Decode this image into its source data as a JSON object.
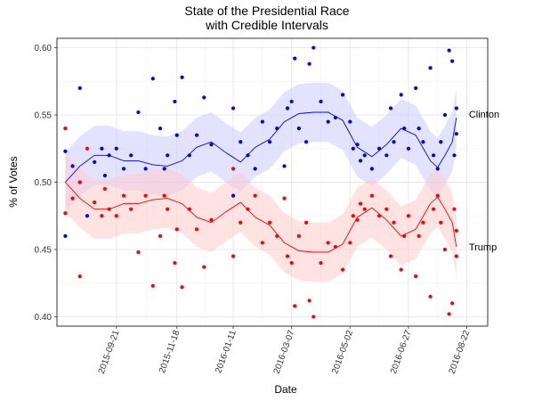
{
  "chart_data": {
    "type": "scatter",
    "title_line1": "State of the Presidential Race",
    "title_line2": "with Credible Intervals",
    "xlabel": "Date",
    "ylabel": "% of Votes",
    "ylim": [
      0.393,
      0.607
    ],
    "xlim": [
      "2015-07-26",
      "2016-09-11"
    ],
    "x_ticks": [
      "2015-09-21",
      "2015-11-18",
      "2016-01-11",
      "2016-03-07",
      "2016-05-02",
      "2016-06-27",
      "2016-08-22"
    ],
    "y_ticks": [
      0.4,
      0.45,
      0.5,
      0.55,
      0.6
    ],
    "y_tick_labels": [
      "0.40",
      "0.45",
      "0.50",
      "0.55",
      "0.60"
    ],
    "grid": true,
    "series": [
      {
        "name": "Clinton",
        "color": "#0000ff",
        "band_color": "#ccccff",
        "trend": [
          [
            "2015-08-03",
            0.5
          ],
          [
            "2015-08-17",
            0.512
          ],
          [
            "2015-08-31",
            0.52
          ],
          [
            "2015-09-14",
            0.52
          ],
          [
            "2015-09-28",
            0.516
          ],
          [
            "2015-10-12",
            0.516
          ],
          [
            "2015-10-26",
            0.513
          ],
          [
            "2015-11-09",
            0.512
          ],
          [
            "2015-11-23",
            0.516
          ],
          [
            "2015-12-07",
            0.526
          ],
          [
            "2015-12-21",
            0.53
          ],
          [
            "2016-01-04",
            0.522
          ],
          [
            "2016-01-18",
            0.515
          ],
          [
            "2016-02-01",
            0.526
          ],
          [
            "2016-02-15",
            0.532
          ],
          [
            "2016-02-29",
            0.545
          ],
          [
            "2016-03-14",
            0.551
          ],
          [
            "2016-03-28",
            0.552
          ],
          [
            "2016-04-11",
            0.552
          ],
          [
            "2016-04-25",
            0.546
          ],
          [
            "2016-05-09",
            0.526
          ],
          [
            "2016-05-23",
            0.519
          ],
          [
            "2016-06-06",
            0.528
          ],
          [
            "2016-06-20",
            0.54
          ],
          [
            "2016-07-04",
            0.535
          ],
          [
            "2016-07-18",
            0.516
          ],
          [
            "2016-07-25",
            0.511
          ],
          [
            "2016-08-01",
            0.52
          ],
          [
            "2016-08-08",
            0.53
          ],
          [
            "2016-08-12",
            0.548
          ]
        ],
        "points": [
          [
            "2015-08-03",
            0.46
          ],
          [
            "2015-08-03",
            0.523
          ],
          [
            "2015-08-10",
            0.512
          ],
          [
            "2015-08-17",
            0.57
          ],
          [
            "2015-08-17",
            0.5
          ],
          [
            "2015-08-24",
            0.475
          ],
          [
            "2015-08-31",
            0.515
          ],
          [
            "2015-09-07",
            0.525
          ],
          [
            "2015-09-10",
            0.505
          ],
          [
            "2015-09-14",
            0.52
          ],
          [
            "2015-09-21",
            0.525
          ],
          [
            "2015-09-28",
            0.51
          ],
          [
            "2015-10-05",
            0.52
          ],
          [
            "2015-10-12",
            0.552
          ],
          [
            "2015-10-19",
            0.51
          ],
          [
            "2015-10-26",
            0.577
          ],
          [
            "2015-11-02",
            0.54
          ],
          [
            "2015-11-06",
            0.51
          ],
          [
            "2015-11-09",
            0.52
          ],
          [
            "2015-11-16",
            0.56
          ],
          [
            "2015-11-18",
            0.535
          ],
          [
            "2015-11-23",
            0.578
          ],
          [
            "2015-11-30",
            0.52
          ],
          [
            "2015-12-07",
            0.535
          ],
          [
            "2015-12-14",
            0.563
          ],
          [
            "2015-12-21",
            0.528
          ],
          [
            "2016-01-11",
            0.555
          ],
          [
            "2016-01-11",
            0.49
          ],
          [
            "2016-01-18",
            0.53
          ],
          [
            "2016-01-25",
            0.52
          ],
          [
            "2016-02-01",
            0.51
          ],
          [
            "2016-02-08",
            0.545
          ],
          [
            "2016-02-15",
            0.53
          ],
          [
            "2016-02-22",
            0.54
          ],
          [
            "2016-02-29",
            0.512
          ],
          [
            "2016-03-03",
            0.555
          ],
          [
            "2016-03-07",
            0.56
          ],
          [
            "2016-03-10",
            0.592
          ],
          [
            "2016-03-14",
            0.54
          ],
          [
            "2016-03-21",
            0.53
          ],
          [
            "2016-03-24",
            0.588
          ],
          [
            "2016-03-28",
            0.6
          ],
          [
            "2016-04-04",
            0.56
          ],
          [
            "2016-04-11",
            0.545
          ],
          [
            "2016-04-18",
            0.548
          ],
          [
            "2016-04-25",
            0.565
          ],
          [
            "2016-05-02",
            0.545
          ],
          [
            "2016-05-05",
            0.525
          ],
          [
            "2016-05-09",
            0.528
          ],
          [
            "2016-05-12",
            0.516
          ],
          [
            "2016-05-16",
            0.52
          ],
          [
            "2016-05-23",
            0.51
          ],
          [
            "2016-05-30",
            0.525
          ],
          [
            "2016-06-06",
            0.52
          ],
          [
            "2016-06-10",
            0.555
          ],
          [
            "2016-06-13",
            0.53
          ],
          [
            "2016-06-20",
            0.565
          ],
          [
            "2016-06-23",
            0.54
          ],
          [
            "2016-06-27",
            0.525
          ],
          [
            "2016-07-04",
            0.57
          ],
          [
            "2016-07-07",
            0.54
          ],
          [
            "2016-07-11",
            0.53
          ],
          [
            "2016-07-18",
            0.585
          ],
          [
            "2016-07-21",
            0.52
          ],
          [
            "2016-07-25",
            0.51
          ],
          [
            "2016-07-28",
            0.53
          ],
          [
            "2016-08-01",
            0.55
          ],
          [
            "2016-08-05",
            0.598
          ],
          [
            "2016-08-08",
            0.59
          ],
          [
            "2016-08-10",
            0.52
          ],
          [
            "2016-08-12",
            0.555
          ],
          [
            "2016-08-12",
            0.536
          ]
        ]
      },
      {
        "name": "Trump",
        "color": "#ff0000",
        "band_color": "#ffcccc",
        "trend": [
          [
            "2015-08-03",
            0.5
          ],
          [
            "2015-08-17",
            0.488
          ],
          [
            "2015-08-31",
            0.48
          ],
          [
            "2015-09-14",
            0.48
          ],
          [
            "2015-09-28",
            0.484
          ],
          [
            "2015-10-12",
            0.484
          ],
          [
            "2015-10-26",
            0.487
          ],
          [
            "2015-11-09",
            0.488
          ],
          [
            "2015-11-23",
            0.484
          ],
          [
            "2015-12-07",
            0.474
          ],
          [
            "2015-12-21",
            0.47
          ],
          [
            "2016-01-04",
            0.478
          ],
          [
            "2016-01-18",
            0.485
          ],
          [
            "2016-02-01",
            0.474
          ],
          [
            "2016-02-15",
            0.468
          ],
          [
            "2016-02-29",
            0.455
          ],
          [
            "2016-03-14",
            0.449
          ],
          [
            "2016-03-28",
            0.448
          ],
          [
            "2016-04-11",
            0.448
          ],
          [
            "2016-04-25",
            0.454
          ],
          [
            "2016-05-09",
            0.474
          ],
          [
            "2016-05-23",
            0.481
          ],
          [
            "2016-06-06",
            0.472
          ],
          [
            "2016-06-20",
            0.46
          ],
          [
            "2016-07-04",
            0.465
          ],
          [
            "2016-07-18",
            0.484
          ],
          [
            "2016-07-25",
            0.489
          ],
          [
            "2016-08-01",
            0.48
          ],
          [
            "2016-08-08",
            0.47
          ],
          [
            "2016-08-12",
            0.452
          ]
        ],
        "points": [
          [
            "2015-08-03",
            0.54
          ],
          [
            "2015-08-03",
            0.477
          ],
          [
            "2015-08-10",
            0.488
          ],
          [
            "2015-08-17",
            0.43
          ],
          [
            "2015-08-17",
            0.5
          ],
          [
            "2015-08-24",
            0.525
          ],
          [
            "2015-08-31",
            0.485
          ],
          [
            "2015-09-07",
            0.475
          ],
          [
            "2015-09-10",
            0.495
          ],
          [
            "2015-09-14",
            0.48
          ],
          [
            "2015-09-21",
            0.475
          ],
          [
            "2015-09-28",
            0.49
          ],
          [
            "2015-10-05",
            0.48
          ],
          [
            "2015-10-12",
            0.448
          ],
          [
            "2015-10-19",
            0.49
          ],
          [
            "2015-10-26",
            0.423
          ],
          [
            "2015-11-02",
            0.46
          ],
          [
            "2015-11-06",
            0.49
          ],
          [
            "2015-11-09",
            0.48
          ],
          [
            "2015-11-16",
            0.44
          ],
          [
            "2015-11-18",
            0.465
          ],
          [
            "2015-11-23",
            0.422
          ],
          [
            "2015-11-30",
            0.48
          ],
          [
            "2015-12-07",
            0.465
          ],
          [
            "2015-12-14",
            0.437
          ],
          [
            "2015-12-21",
            0.472
          ],
          [
            "2016-01-11",
            0.445
          ],
          [
            "2016-01-11",
            0.51
          ],
          [
            "2016-01-18",
            0.47
          ],
          [
            "2016-01-25",
            0.48
          ],
          [
            "2016-02-01",
            0.49
          ],
          [
            "2016-02-08",
            0.455
          ],
          [
            "2016-02-15",
            0.47
          ],
          [
            "2016-02-22",
            0.46
          ],
          [
            "2016-02-29",
            0.488
          ],
          [
            "2016-03-03",
            0.445
          ],
          [
            "2016-03-07",
            0.44
          ],
          [
            "2016-03-10",
            0.408
          ],
          [
            "2016-03-14",
            0.46
          ],
          [
            "2016-03-21",
            0.47
          ],
          [
            "2016-03-24",
            0.412
          ],
          [
            "2016-03-28",
            0.4
          ],
          [
            "2016-04-04",
            0.44
          ],
          [
            "2016-04-11",
            0.455
          ],
          [
            "2016-04-18",
            0.452
          ],
          [
            "2016-04-25",
            0.435
          ],
          [
            "2016-05-02",
            0.455
          ],
          [
            "2016-05-05",
            0.475
          ],
          [
            "2016-05-09",
            0.472
          ],
          [
            "2016-05-12",
            0.484
          ],
          [
            "2016-05-16",
            0.48
          ],
          [
            "2016-05-23",
            0.49
          ],
          [
            "2016-05-30",
            0.475
          ],
          [
            "2016-06-06",
            0.48
          ],
          [
            "2016-06-10",
            0.445
          ],
          [
            "2016-06-13",
            0.47
          ],
          [
            "2016-06-20",
            0.435
          ],
          [
            "2016-06-23",
            0.46
          ],
          [
            "2016-06-27",
            0.475
          ],
          [
            "2016-07-04",
            0.43
          ],
          [
            "2016-07-07",
            0.46
          ],
          [
            "2016-07-11",
            0.47
          ],
          [
            "2016-07-18",
            0.415
          ],
          [
            "2016-07-21",
            0.48
          ],
          [
            "2016-07-25",
            0.49
          ],
          [
            "2016-07-28",
            0.47
          ],
          [
            "2016-08-01",
            0.45
          ],
          [
            "2016-08-05",
            0.402
          ],
          [
            "2016-08-08",
            0.41
          ],
          [
            "2016-08-10",
            0.48
          ],
          [
            "2016-08-12",
            0.445
          ],
          [
            "2016-08-12",
            0.464
          ]
        ]
      }
    ]
  }
}
